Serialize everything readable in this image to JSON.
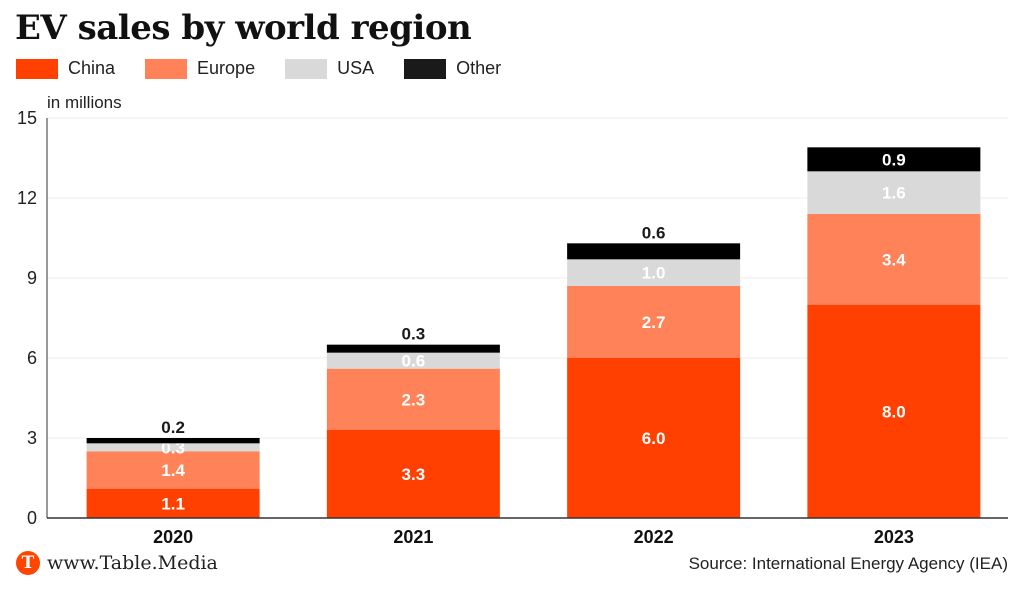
{
  "chart_data": {
    "type": "bar",
    "stacked": true,
    "title": "EV sales by world region",
    "unit_label": "in millions",
    "xlabel": "",
    "ylabel": "in millions",
    "ylim": [
      0,
      15
    ],
    "yticks": [
      0,
      3,
      6,
      9,
      12,
      15
    ],
    "grid": true,
    "legend_position": "top-left",
    "categories": [
      "2020",
      "2021",
      "2022",
      "2023"
    ],
    "series": [
      {
        "name": "China",
        "color": "#ff4000",
        "values": [
          1.1,
          3.3,
          6.0,
          8.0
        ],
        "label_color": "#ffffff"
      },
      {
        "name": "Europe",
        "color": "#ff8259",
        "values": [
          1.4,
          2.3,
          2.7,
          3.4
        ],
        "label_color": "#ffffff"
      },
      {
        "name": "USA",
        "color": "#d9d9d9",
        "values": [
          0.3,
          0.6,
          1.0,
          1.6
        ],
        "label_color": "#ffffff"
      },
      {
        "name": "Other",
        "color": "#000000",
        "values": [
          0.2,
          0.3,
          0.6,
          0.9
        ],
        "label_color": "#ffffff"
      }
    ],
    "data_labels": [
      [
        "1.1",
        "1.4",
        "0.3",
        "0.2"
      ],
      [
        "3.3",
        "2.3",
        "0.6",
        "0.3"
      ],
      [
        "6.0",
        "2.7",
        "1.0",
        "0.6"
      ],
      [
        "8.0",
        "3.4",
        "1.6",
        "0.9"
      ]
    ]
  },
  "footer": {
    "logo_letter": "T",
    "site": "www.Table.Media",
    "source": "Source: International Energy Agency (IEA)"
  }
}
